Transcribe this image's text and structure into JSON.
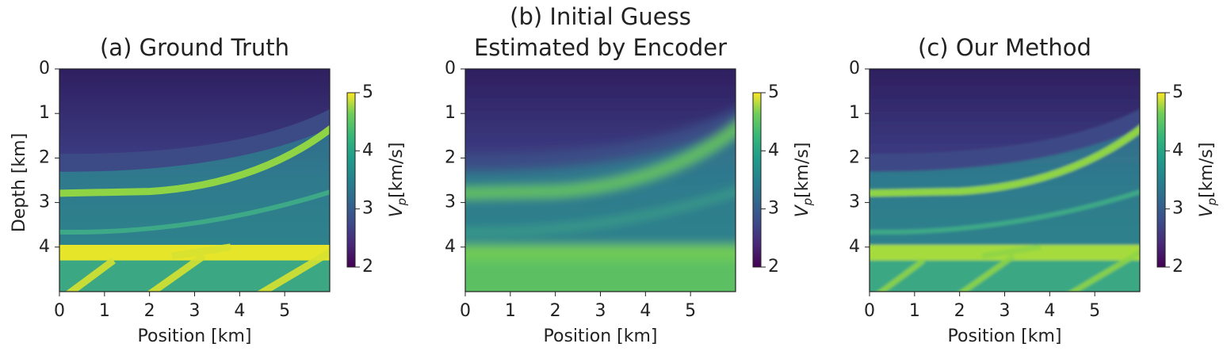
{
  "chart_data": [
    {
      "type": "heatmap",
      "title": [
        "(a) Ground Truth"
      ],
      "xlabel": "Position [km]",
      "ylabel": "Depth [km]",
      "xlim": [
        0,
        6
      ],
      "ylim": [
        5,
        0
      ],
      "xticks": [
        0,
        1,
        2,
        3,
        4,
        5
      ],
      "yticks": [
        0,
        1,
        2,
        3,
        4
      ],
      "colorbar_symbol": "V",
      "colorbar_subscript": "p",
      "colorbar_unit": "[km/s]",
      "clim": [
        2,
        5
      ],
      "cticks": [
        2,
        3,
        4,
        5
      ],
      "colormap": "viridis"
    },
    {
      "type": "heatmap",
      "title": [
        "(b) Initial Guess",
        "Estimated by Encoder"
      ],
      "xlabel": "Position [km]",
      "xlim": [
        0,
        6
      ],
      "ylim": [
        5,
        0
      ],
      "xticks": [
        0,
        1,
        2,
        3,
        4,
        5
      ],
      "yticks": [
        0,
        1,
        2,
        3,
        4
      ],
      "colorbar_symbol": "V",
      "colorbar_subscript": "p",
      "colorbar_unit": "[km/s]",
      "clim": [
        2,
        5
      ],
      "cticks": [
        2,
        3,
        4,
        5
      ],
      "colormap": "viridis"
    },
    {
      "type": "heatmap",
      "title": [
        "(c) Our Method"
      ],
      "xlabel": "Position [km]",
      "xlim": [
        0,
        6
      ],
      "ylim": [
        5,
        0
      ],
      "xticks": [
        0,
        1,
        2,
        3,
        4,
        5
      ],
      "yticks": [
        0,
        1,
        2,
        3,
        4
      ],
      "colorbar_symbol": "V",
      "colorbar_subscript": "p",
      "colorbar_unit": "[km/s]",
      "clim": [
        2,
        5
      ],
      "cticks": [
        2,
        3,
        4,
        5
      ],
      "colormap": "viridis"
    }
  ]
}
